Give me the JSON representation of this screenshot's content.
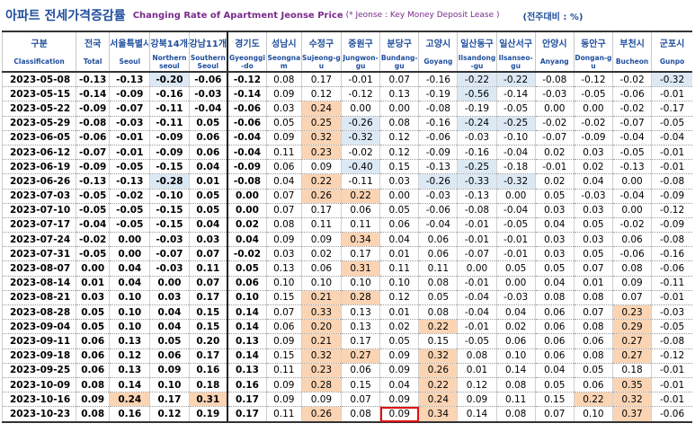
{
  "title": {
    "korean": "아파트 전세가격증감률",
    "english": "Changing Rate of Apartment Jeonse Price",
    "note": "(* Jeonse : Key Money Deposit Lease )",
    "unit": "(전주대비 : %)"
  },
  "columns": [
    {
      "ko": "구분",
      "en": "Classification"
    },
    {
      "ko": "전국",
      "en": "Total"
    },
    {
      "ko": "서울특별시",
      "en": "Seoul"
    },
    {
      "ko": "강북14개구",
      "en": "Northern seoul"
    },
    {
      "ko": "강남11개구",
      "en": "Southern Seoul"
    },
    {
      "ko": "경기도",
      "en": "Gyeonggi-do"
    },
    {
      "ko": "성남시",
      "en": "Seongnam"
    },
    {
      "ko": "수정구",
      "en": "Sujeong-gu"
    },
    {
      "ko": "중원구",
      "en": "Jungwon-gu"
    },
    {
      "ko": "분당구",
      "en": "Bundang-gu"
    },
    {
      "ko": "고양시",
      "en": "Goyang"
    },
    {
      "ko": "일산동구",
      "en": "Ilsandong-gu"
    },
    {
      "ko": "일산서구",
      "en": "Ilsanseo-gu"
    },
    {
      "ko": "안양시",
      "en": "Anyang"
    },
    {
      "ko": "동안구",
      "en": "Dongan-gu"
    },
    {
      "ko": "부천시",
      "en": "Bucheon"
    },
    {
      "ko": "군포시",
      "en": "Gunpo"
    }
  ],
  "rows": [
    {
      "date": "2023-05-08",
      "values": [
        "-0.13",
        "-0.13",
        "-0.20",
        "-0.06",
        "-0.12",
        "0.08",
        "0.17",
        "-0.01",
        "0.07",
        "-0.16",
        "-0.22",
        "-0.22",
        "-0.08",
        "-0.12",
        "-0.02",
        "-0.32"
      ]
    },
    {
      "date": "2023-05-15",
      "values": [
        "-0.14",
        "-0.09",
        "-0.16",
        "-0.03",
        "-0.14",
        "0.09",
        "0.12",
        "-0.12",
        "0.13",
        "-0.19",
        "-0.56",
        "-0.14",
        "-0.03",
        "-0.05",
        "-0.06",
        "-0.01"
      ]
    },
    {
      "date": "2023-05-22",
      "values": [
        "-0.09",
        "-0.07",
        "-0.11",
        "-0.04",
        "-0.06",
        "0.03",
        "0.24",
        "0.00",
        "0.00",
        "-0.08",
        "-0.19",
        "-0.05",
        "0.00",
        "0.00",
        "-0.02",
        "-0.17"
      ]
    },
    {
      "date": "2023-05-29",
      "values": [
        "-0.08",
        "-0.03",
        "-0.11",
        "0.05",
        "-0.06",
        "0.05",
        "0.25",
        "-0.26",
        "0.08",
        "-0.16",
        "-0.24",
        "-0.25",
        "-0.02",
        "-0.02",
        "-0.07",
        "-0.05"
      ]
    },
    {
      "date": "2023-06-05",
      "values": [
        "-0.06",
        "-0.01",
        "-0.09",
        "0.06",
        "-0.04",
        "0.09",
        "0.32",
        "-0.32",
        "0.12",
        "-0.06",
        "-0.03",
        "-0.10",
        "-0.07",
        "-0.09",
        "-0.04",
        "-0.04"
      ]
    },
    {
      "date": "2023-06-12",
      "values": [
        "-0.07",
        "-0.01",
        "-0.09",
        "0.06",
        "-0.04",
        "0.11",
        "0.23",
        "-0.02",
        "0.12",
        "-0.09",
        "-0.16",
        "-0.04",
        "0.02",
        "0.03",
        "-0.05",
        "-0.01"
      ]
    },
    {
      "date": "2023-06-19",
      "values": [
        "-0.09",
        "-0.05",
        "-0.15",
        "0.04",
        "-0.09",
        "0.06",
        "0.09",
        "-0.40",
        "0.15",
        "-0.13",
        "-0.25",
        "-0.18",
        "-0.01",
        "0.02",
        "-0.13",
        "-0.01"
      ]
    },
    {
      "date": "2023-06-26",
      "values": [
        "-0.13",
        "-0.13",
        "-0.28",
        "0.01",
        "-0.08",
        "0.04",
        "0.22",
        "-0.11",
        "0.03",
        "-0.26",
        "-0.33",
        "-0.32",
        "0.02",
        "0.04",
        "0.00",
        "-0.08"
      ]
    },
    {
      "date": "2023-07-03",
      "values": [
        "-0.05",
        "-0.02",
        "-0.10",
        "0.05",
        "0.00",
        "0.07",
        "0.26",
        "0.22",
        "0.00",
        "-0.03",
        "-0.13",
        "0.00",
        "0.05",
        "-0.03",
        "-0.04",
        "-0.09"
      ]
    },
    {
      "date": "2023-07-10",
      "values": [
        "-0.05",
        "-0.05",
        "-0.15",
        "0.05",
        "0.00",
        "0.07",
        "0.17",
        "0.06",
        "0.05",
        "-0.06",
        "-0.08",
        "-0.04",
        "0.03",
        "0.03",
        "0.00",
        "-0.12"
      ]
    },
    {
      "date": "2023-07-17",
      "values": [
        "-0.04",
        "-0.05",
        "-0.15",
        "0.04",
        "0.02",
        "0.08",
        "0.11",
        "0.11",
        "0.06",
        "-0.04",
        "-0.01",
        "-0.05",
        "0.04",
        "0.05",
        "-0.02",
        "-0.09"
      ]
    },
    {
      "date": "2023-07-24",
      "values": [
        "-0.02",
        "0.00",
        "-0.03",
        "0.03",
        "0.04",
        "0.09",
        "0.09",
        "0.34",
        "0.04",
        "0.06",
        "-0.01",
        "-0.01",
        "0.03",
        "0.03",
        "0.06",
        "-0.08"
      ]
    },
    {
      "date": "2023-07-31",
      "values": [
        "-0.05",
        "0.00",
        "-0.07",
        "0.07",
        "-0.02",
        "0.03",
        "0.02",
        "0.17",
        "0.01",
        "0.06",
        "-0.07",
        "-0.01",
        "0.03",
        "0.05",
        "-0.06",
        "-0.16"
      ]
    },
    {
      "date": "2023-08-07",
      "values": [
        "0.00",
        "0.04",
        "-0.03",
        "0.11",
        "0.05",
        "0.13",
        "0.06",
        "0.31",
        "0.11",
        "0.11",
        "0.00",
        "0.05",
        "0.05",
        "0.07",
        "0.08",
        "-0.06"
      ]
    },
    {
      "date": "2023-08-14",
      "values": [
        "0.01",
        "0.04",
        "0.00",
        "0.07",
        "0.06",
        "0.10",
        "0.10",
        "0.10",
        "0.10",
        "0.08",
        "-0.01",
        "0.00",
        "0.04",
        "0.01",
        "0.09",
        "-0.11"
      ]
    },
    {
      "date": "2023-08-21",
      "values": [
        "0.03",
        "0.10",
        "0.03",
        "0.17",
        "0.10",
        "0.15",
        "0.21",
        "0.28",
        "0.12",
        "0.05",
        "-0.04",
        "-0.03",
        "0.08",
        "0.08",
        "0.07",
        "-0.01"
      ]
    },
    {
      "date": "2023-08-28",
      "values": [
        "0.05",
        "0.10",
        "0.04",
        "0.15",
        "0.14",
        "0.07",
        "0.33",
        "0.13",
        "0.01",
        "0.08",
        "-0.04",
        "0.04",
        "0.06",
        "0.07",
        "0.23",
        "-0.03"
      ]
    },
    {
      "date": "2023-09-04",
      "values": [
        "0.05",
        "0.10",
        "0.04",
        "0.15",
        "0.14",
        "0.06",
        "0.20",
        "0.13",
        "0.02",
        "0.22",
        "-0.01",
        "0.02",
        "0.06",
        "0.08",
        "0.29",
        "-0.05"
      ]
    },
    {
      "date": "2023-09-11",
      "values": [
        "0.06",
        "0.13",
        "0.05",
        "0.20",
        "0.13",
        "0.09",
        "0.21",
        "0.17",
        "0.05",
        "0.15",
        "-0.05",
        "0.06",
        "0.06",
        "0.06",
        "0.27",
        "-0.08"
      ]
    },
    {
      "date": "2023-09-18",
      "values": [
        "0.06",
        "0.12",
        "0.06",
        "0.17",
        "0.14",
        "0.15",
        "0.32",
        "0.27",
        "0.09",
        "0.32",
        "0.08",
        "0.10",
        "0.06",
        "0.08",
        "0.27",
        "-0.12"
      ]
    },
    {
      "date": "2023-09-25",
      "values": [
        "0.06",
        "0.13",
        "0.09",
        "0.16",
        "0.13",
        "0.11",
        "0.23",
        "0.06",
        "0.09",
        "0.26",
        "0.01",
        "0.14",
        "0.04",
        "0.05",
        "0.18",
        "-0.01"
      ]
    },
    {
      "date": "2023-10-09",
      "values": [
        "0.08",
        "0.14",
        "0.10",
        "0.18",
        "0.16",
        "0.09",
        "0.28",
        "0.15",
        "0.04",
        "0.22",
        "0.12",
        "0.08",
        "0.05",
        "0.06",
        "0.35",
        "-0.01"
      ]
    },
    {
      "date": "2023-10-16",
      "values": [
        "0.09",
        "0.24",
        "0.17",
        "0.31",
        "0.17",
        "0.09",
        "0.09",
        "0.07",
        "0.09",
        "0.24",
        "0.09",
        "0.11",
        "0.15",
        "0.22",
        "0.32",
        "-0.01"
      ]
    },
    {
      "date": "2023-10-23",
      "values": [
        "0.08",
        "0.16",
        "0.12",
        "0.19",
        "0.17",
        "0.11",
        "0.26",
        "0.08",
        "0.09",
        "0.34",
        "0.14",
        "0.08",
        "0.07",
        "0.10",
        "0.37",
        "-0.06"
      ]
    }
  ],
  "highlights": {
    "negative_color": "#dce9f5",
    "positive_color": "#fbd4b4",
    "boxed_color": "#e01010",
    "negative_cells": [
      [
        0,
        2
      ],
      [
        0,
        10
      ],
      [
        0,
        11
      ],
      [
        0,
        15
      ],
      [
        1,
        10
      ],
      [
        3,
        7
      ],
      [
        3,
        10
      ],
      [
        3,
        11
      ],
      [
        4,
        7
      ],
      [
        6,
        7
      ],
      [
        6,
        10
      ],
      [
        7,
        2
      ],
      [
        7,
        9
      ],
      [
        7,
        10
      ],
      [
        7,
        11
      ]
    ],
    "positive_cells": [
      [
        2,
        6
      ],
      [
        3,
        6
      ],
      [
        4,
        6
      ],
      [
        5,
        6
      ],
      [
        7,
        6
      ],
      [
        8,
        6
      ],
      [
        8,
        7
      ],
      [
        11,
        7
      ],
      [
        13,
        7
      ],
      [
        15,
        6
      ],
      [
        15,
        7
      ],
      [
        16,
        6
      ],
      [
        16,
        14
      ],
      [
        17,
        6
      ],
      [
        17,
        9
      ],
      [
        17,
        14
      ],
      [
        18,
        6
      ],
      [
        18,
        14
      ],
      [
        19,
        6
      ],
      [
        19,
        7
      ],
      [
        19,
        9
      ],
      [
        19,
        14
      ],
      [
        20,
        6
      ],
      [
        20,
        9
      ],
      [
        21,
        6
      ],
      [
        21,
        9
      ],
      [
        21,
        14
      ],
      [
        22,
        1
      ],
      [
        22,
        3
      ],
      [
        22,
        9
      ],
      [
        22,
        13
      ],
      [
        22,
        14
      ],
      [
        23,
        6
      ],
      [
        23,
        9
      ],
      [
        23,
        14
      ]
    ],
    "boxed_cells": [
      [
        23,
        8
      ]
    ]
  }
}
